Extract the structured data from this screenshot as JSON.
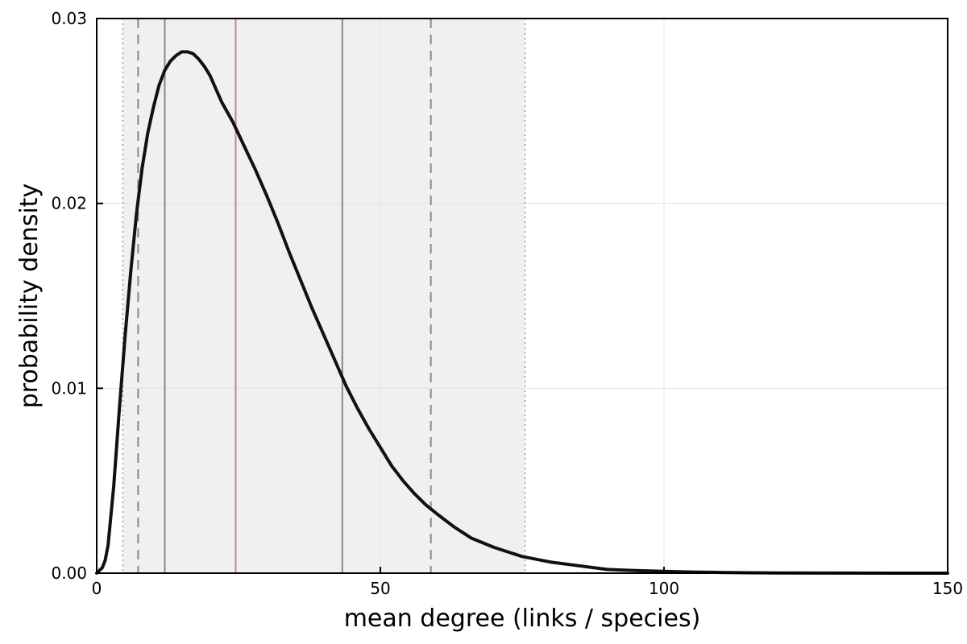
{
  "chart_data": {
    "type": "line",
    "xlabel": "mean degree (links / species)",
    "ylabel": "probability density",
    "xlim": [
      0,
      150
    ],
    "ylim": [
      0,
      0.03
    ],
    "x_ticks": [
      0,
      50,
      100,
      150
    ],
    "x_tick_labels": [
      "0",
      "50",
      "100",
      "150"
    ],
    "y_ticks": [
      0.0,
      0.01,
      0.02,
      0.03
    ],
    "y_tick_labels": [
      "0.00",
      "0.01",
      "0.02",
      "0.03"
    ],
    "grid": true,
    "legend": "none",
    "shaded_interval": [
      4.6,
      75.5
    ],
    "reference_lines": [
      {
        "x": 4.6,
        "style": "dotted",
        "color": "#999999"
      },
      {
        "x": 7.3,
        "style": "dashed",
        "color": "#888888"
      },
      {
        "x": 12.0,
        "style": "solid",
        "color": "#888888"
      },
      {
        "x": 24.5,
        "style": "solid",
        "color": "#c77fa8"
      },
      {
        "x": 43.3,
        "style": "solid",
        "color": "#888888"
      },
      {
        "x": 58.9,
        "style": "dashed",
        "color": "#888888"
      },
      {
        "x": 75.5,
        "style": "dotted",
        "color": "#999999"
      }
    ],
    "series": [
      {
        "color": "#111111",
        "x": [
          0,
          1,
          1.5,
          2,
          3,
          4,
          5,
          6,
          7,
          8,
          9,
          10,
          11,
          12,
          13,
          14,
          15,
          16,
          17,
          18,
          19,
          20,
          21,
          22,
          24,
          26,
          28,
          30,
          32,
          34,
          36,
          38,
          40,
          42,
          44,
          46,
          48,
          50,
          52,
          54,
          56,
          58,
          60,
          63,
          66,
          70,
          75,
          80,
          85,
          90,
          95,
          100,
          105,
          110,
          115,
          120,
          130,
          140,
          150
        ],
        "y": [
          0.0,
          0.0003,
          0.0007,
          0.0015,
          0.0047,
          0.0089,
          0.0128,
          0.0163,
          0.0194,
          0.0219,
          0.0238,
          0.0252,
          0.0264,
          0.0272,
          0.0277,
          0.028,
          0.0282,
          0.0282,
          0.0281,
          0.0278,
          0.0274,
          0.0269,
          0.0262,
          0.0255,
          0.0244,
          0.0231,
          0.0218,
          0.0204,
          0.0189,
          0.0173,
          0.0158,
          0.0143,
          0.0129,
          0.0115,
          0.0101,
          0.0089,
          0.0078,
          0.0068,
          0.0058,
          0.005,
          0.0043,
          0.0037,
          0.0032,
          0.0025,
          0.0019,
          0.0014,
          0.0009,
          0.0006,
          0.0004,
          0.0002,
          0.00014,
          0.0001,
          6e-05,
          4e-05,
          2e-05,
          1e-05,
          4e-06,
          2e-06,
          0.0
        ]
      }
    ]
  }
}
